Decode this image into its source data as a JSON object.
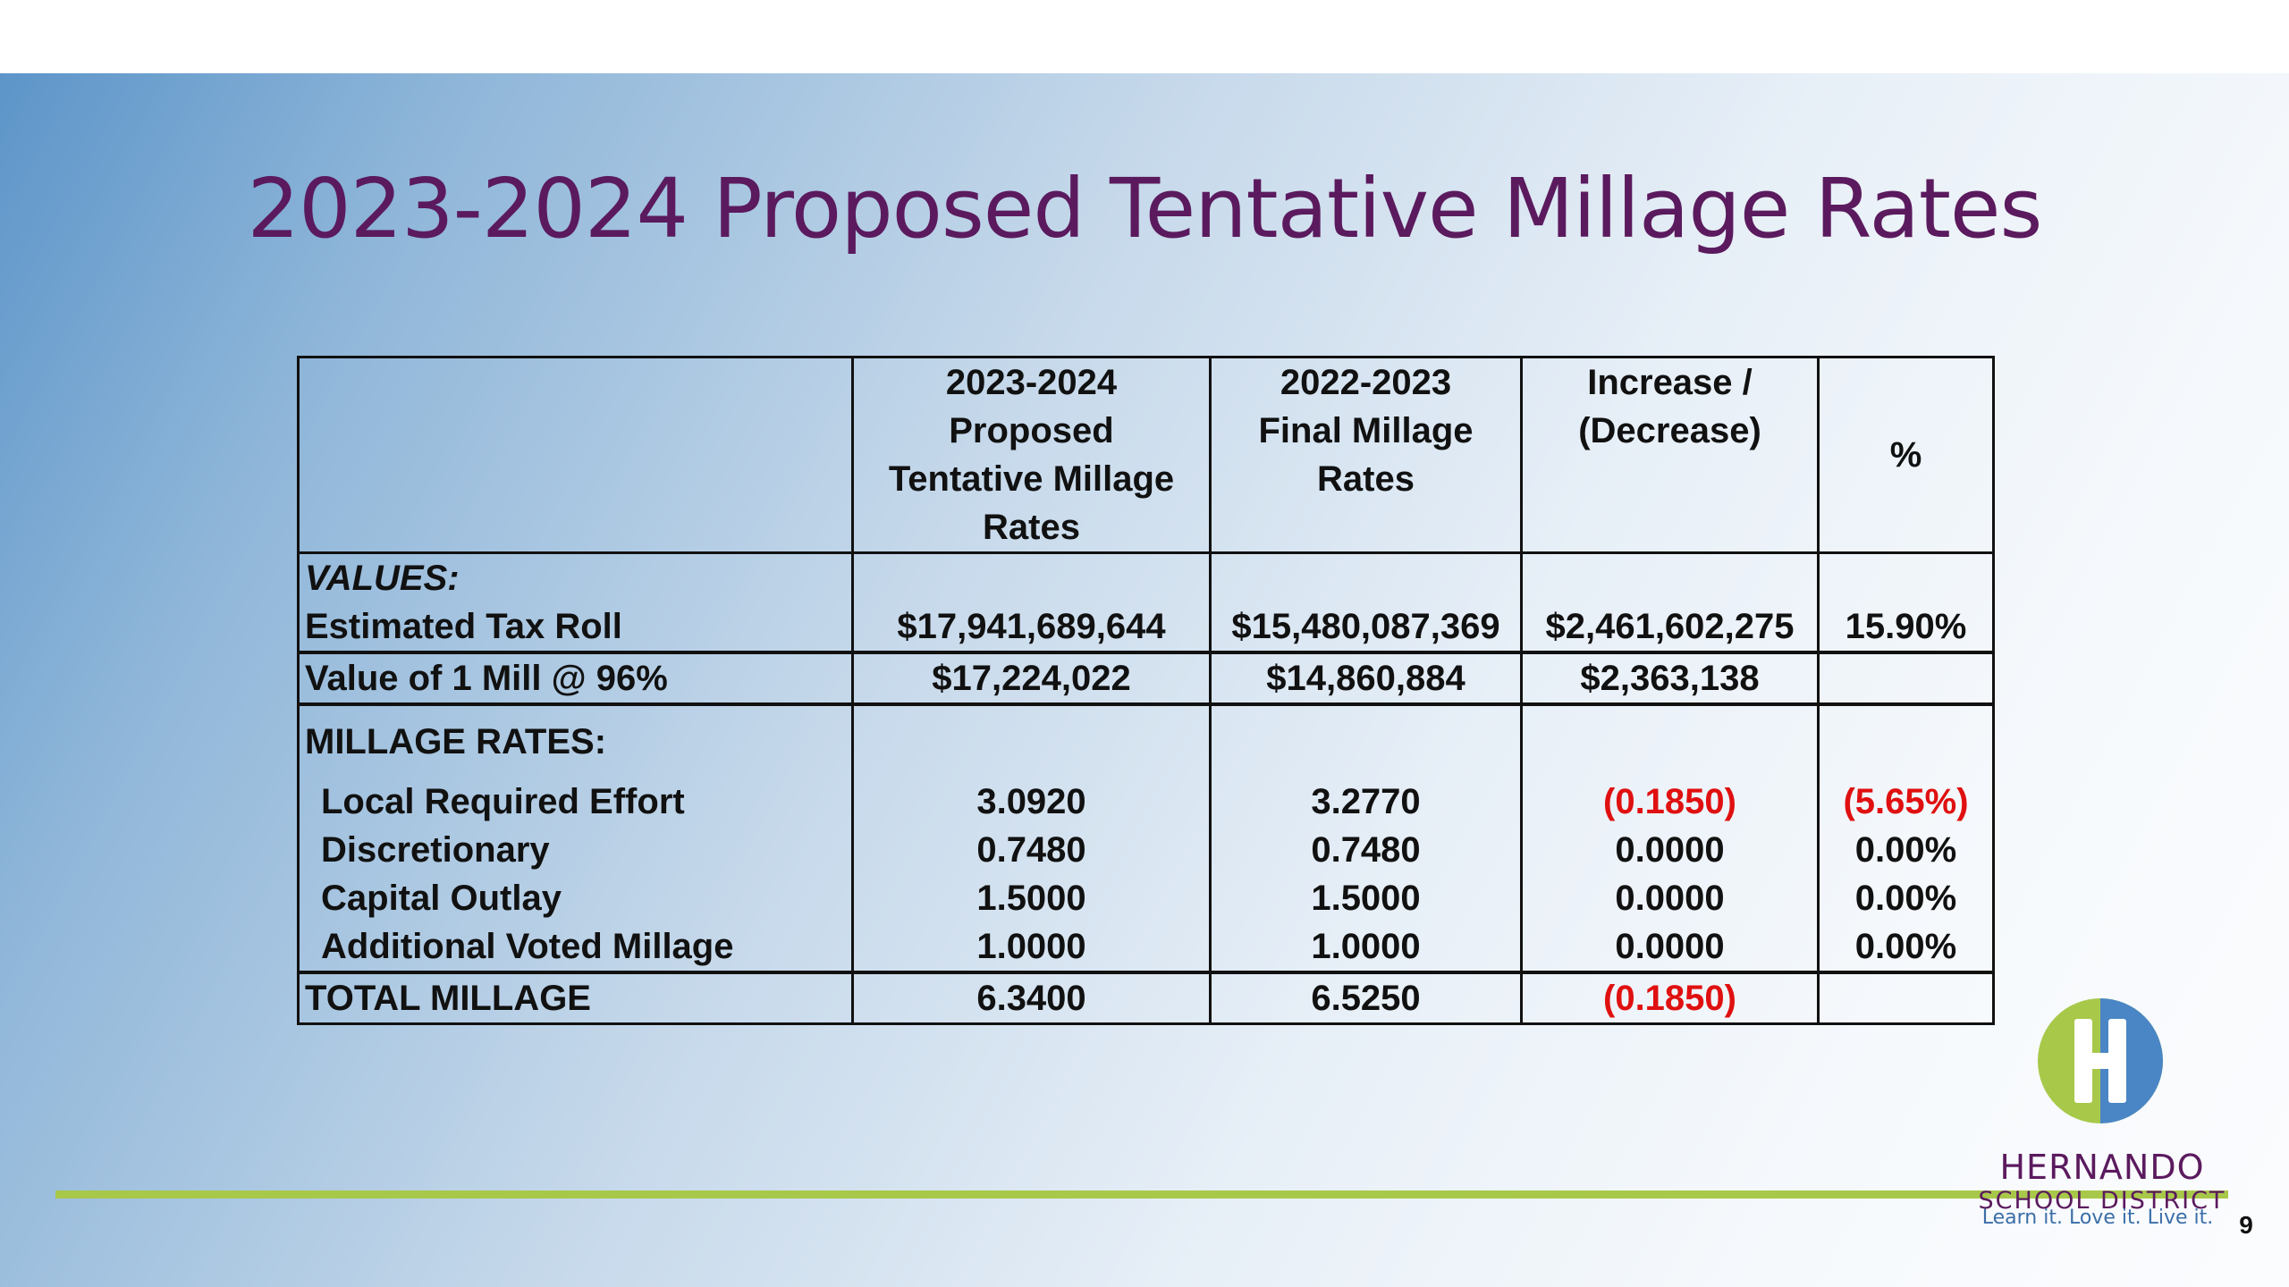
{
  "slide": {
    "title": "2023-2024 Proposed Tentative Millage Rates",
    "page_number": "9"
  },
  "table": {
    "headers": {
      "col1": [
        "2023-2024",
        "Proposed",
        "Tentative Millage",
        "Rates"
      ],
      "col2": [
        "2022-2023",
        "Final Millage",
        "Rates"
      ],
      "col3": [
        "Increase /",
        "(Decrease)"
      ],
      "col4": "%"
    },
    "values_section_label": "VALUES:",
    "tax_roll": {
      "label": "Estimated Tax Roll",
      "proposed": "$17,941,689,644",
      "final": "$15,480,087,369",
      "change": "$2,461,602,275",
      "pct": "15.90%"
    },
    "mill_value": {
      "label": "Value of 1 Mill @ 96%",
      "proposed": "$17,224,022",
      "final": "$14,860,884",
      "change": "$2,363,138",
      "pct": ""
    },
    "millage_section_label": "MILLAGE RATES:",
    "millage_rows": [
      {
        "label": "Local Required Effort",
        "proposed": "3.0920",
        "final": "3.2770",
        "change": "(0.1850)",
        "pct": "(5.65%)"
      },
      {
        "label": "Discretionary",
        "proposed": "0.7480",
        "final": "0.7480",
        "change": "0.0000",
        "pct": "0.00%"
      },
      {
        "label": "Capital Outlay",
        "proposed": "1.5000",
        "final": "1.5000",
        "change": "0.0000",
        "pct": "0.00%"
      },
      {
        "label": "Additional Voted Millage",
        "proposed": "1.0000",
        "final": "1.0000",
        "change": "0.0000",
        "pct": "0.00%"
      }
    ],
    "total": {
      "label": "TOTAL MILLAGE",
      "proposed": "6.3400",
      "final": "6.5250",
      "change": "(0.1850)",
      "pct": ""
    }
  },
  "logo": {
    "name": "HERNANDO",
    "subtitle": "SCHOOL DISTRICT",
    "tagline": "Learn it. Love it. Live it."
  },
  "colors": {
    "title": "#5b1a5e",
    "negative": "#e01010",
    "accent_line": "#a8c84a",
    "logo_green": "#a8c84a",
    "logo_blue": "#4a86c5",
    "tagline": "#3b6ea8"
  },
  "icons": {
    "logo_mark": "h-logo-icon"
  }
}
